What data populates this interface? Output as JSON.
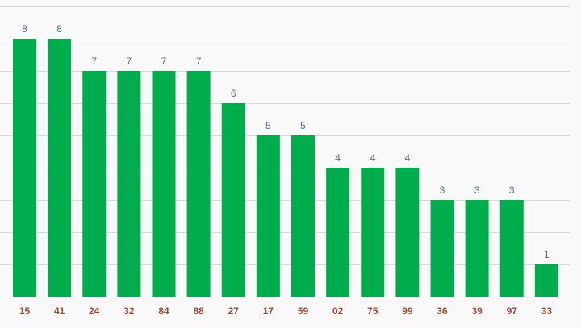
{
  "chart_data": {
    "type": "bar",
    "categories": [
      "15",
      "41",
      "24",
      "32",
      "84",
      "88",
      "27",
      "17",
      "59",
      "02",
      "75",
      "99",
      "36",
      "39",
      "97",
      "33"
    ],
    "values": [
      8,
      8,
      7,
      7,
      7,
      7,
      6,
      5,
      5,
      4,
      4,
      4,
      3,
      3,
      3,
      1
    ],
    "title": "",
    "xlabel": "",
    "ylabel": "",
    "ylim": [
      0,
      9
    ],
    "grid": true,
    "data_labels": true,
    "colors": {
      "bar": "#00ad4d",
      "value_label": "#4d6e8a",
      "category_label": "#9a4b32",
      "grid": "#d8d8d8",
      "background": "#f9f9f9"
    }
  }
}
